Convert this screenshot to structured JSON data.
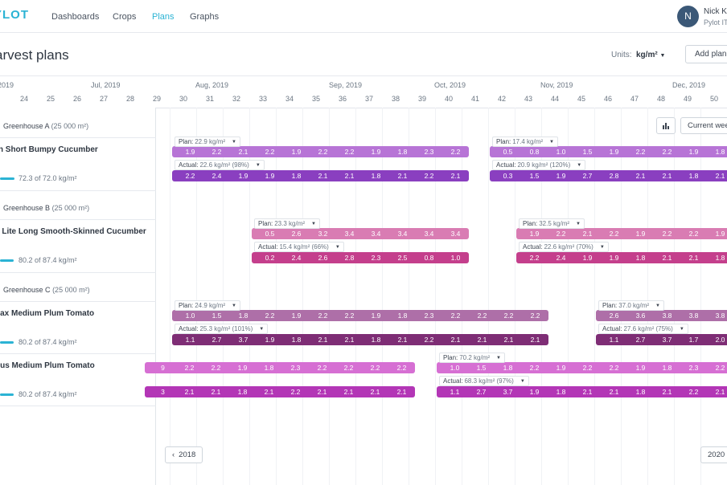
{
  "app": {
    "logo": "YLOT"
  },
  "nav": {
    "items": [
      "Dashboards",
      "Crops",
      "Plans",
      "Graphs"
    ],
    "active": "Plans"
  },
  "user": {
    "initial": "N",
    "name": "Nick K.",
    "org": "Pylot IT"
  },
  "page": {
    "title": "arvest plans",
    "units_label": "Units:",
    "units_value": "kg/m²",
    "add_button": "Add plan"
  },
  "timeline": {
    "months": [
      "2019",
      "Jul, 2019",
      "Aug, 2019",
      "Sep, 2019",
      "Oct, 2019",
      "Nov, 2019",
      "Dec, 2019"
    ],
    "weeks": [
      "3",
      "24",
      "25",
      "26",
      "27",
      "28",
      "29",
      "30",
      "31",
      "32",
      "33",
      "34",
      "35",
      "36",
      "37",
      "38",
      "39",
      "40",
      "41",
      "42",
      "43",
      "44",
      "45",
      "46",
      "47",
      "48",
      "49",
      "50"
    ]
  },
  "controls": {
    "chart_icon": "bar-chart-icon",
    "current_week": "Current wee",
    "prev_year": "2018",
    "next_year": "2020",
    "prev_icon": "chevron-left-icon"
  },
  "greenhouses": [
    {
      "name": "Greenhouse A",
      "area": "(25 000 m²)"
    },
    {
      "name": "Greenhouse B",
      "area": "(25 000 m²)"
    },
    {
      "name": "Greenhouse C",
      "area": "(25 000 m²)"
    }
  ],
  "crops": [
    {
      "name": "rn Short Bumpy Cucumber",
      "progress_text": "72.3 of 72.0 kg/m²",
      "progress": 1.0
    },
    {
      "name": "e Lite Long Smooth-Skinned Cucumber",
      "progress_text": "80.2 of 87.4 kg/m²",
      "progress": 0.92
    },
    {
      "name": "nax Medium Plum Tomato",
      "progress_text": "80.2 of 87.4 kg/m²",
      "progress": 0.92
    },
    {
      "name": "nus Medium Plum Tomato",
      "progress_text": "80.2 of 87.4 kg/m²",
      "progress": 0.92
    }
  ],
  "plans": [
    {
      "plan_key": "Plan:",
      "plan_label": "22.9 kg/m²",
      "plan_values": [
        "1.9",
        "2.2",
        "2.1",
        "2.2",
        "1.9",
        "2.2",
        "2.2",
        "1.9",
        "1.8",
        "2.3",
        "2.2"
      ],
      "actual_key": "Actual:",
      "actual_label": "22.6 kg/m² (98%)",
      "actual_values": [
        "2.2",
        "2.4",
        "1.9",
        "1.9",
        "1.8",
        "2.1",
        "2.1",
        "1.8",
        "2.1",
        "2.2",
        "2.1"
      ],
      "plan_color": "#b774d6",
      "actual_color": "#8a3fc0"
    },
    {
      "plan_key": "Plan:",
      "plan_label": "17.4 kg/m²",
      "plan_values": [
        "0.5",
        "0.8",
        "1.0",
        "1.5",
        "1.9",
        "2.2",
        "2.2",
        "1.9",
        "1.8"
      ],
      "actual_key": "Actual:",
      "actual_label": "20.9 kg/m² (120%)",
      "actual_values": [
        "0.3",
        "1.5",
        "1.9",
        "2.7",
        "2.8",
        "2.1",
        "2.1",
        "1.8",
        "2.1"
      ],
      "plan_color": "#b774d6",
      "actual_color": "#8a3fc0"
    },
    {
      "plan_key": "Plan:",
      "plan_label": "23.3 kg/m²",
      "plan_values": [
        "0.5",
        "2.6",
        "3.2",
        "3.4",
        "3.4",
        "3.4",
        "3.4",
        "3.4"
      ],
      "actual_key": "Actual:",
      "actual_label": "15.4 kg/m² (66%)",
      "actual_values": [
        "0.2",
        "2.4",
        "2.6",
        "2.8",
        "2.3",
        "2.5",
        "0.8",
        "1.0"
      ],
      "plan_color": "#d97cb3",
      "actual_color": "#c43f8c"
    },
    {
      "plan_key": "Plan:",
      "plan_label": "32.5 kg/m²",
      "plan_values": [
        "1.9",
        "2.2",
        "2.1",
        "2.2",
        "1.9",
        "2.2",
        "2.2",
        "1.9"
      ],
      "actual_key": "Actual:",
      "actual_label": "22.6 kg/m² (70%)",
      "actual_values": [
        "2.2",
        "2.4",
        "1.9",
        "1.9",
        "1.8",
        "2.1",
        "2.1",
        "1.8"
      ],
      "plan_color": "#d97cb3",
      "actual_color": "#c43f8c"
    },
    {
      "plan_key": "Plan:",
      "plan_label": "24.9 kg/m²",
      "plan_values": [
        "1.0",
        "1.5",
        "1.8",
        "2.2",
        "1.9",
        "2.2",
        "2.2",
        "1.9",
        "1.8",
        "2.3",
        "2.2",
        "2.2",
        "2.2",
        "2.2"
      ],
      "actual_key": "Actual:",
      "actual_label": "25.3 kg/m² (101%)",
      "actual_values": [
        "1.1",
        "2.7",
        "3.7",
        "1.9",
        "1.8",
        "2.1",
        "2.1",
        "1.8",
        "2.1",
        "2.2",
        "2.1",
        "2.1",
        "2.1",
        "2.1"
      ],
      "plan_color": "#ae6fa8",
      "actual_color": "#7e2d75"
    },
    {
      "plan_key": "Plan:",
      "plan_label": "37.0 kg/m²",
      "plan_values": [
        "2.6",
        "3.6",
        "3.8",
        "3.8",
        "3.8"
      ],
      "actual_key": "Actual:",
      "actual_label": "27.6 kg/m² (75%)",
      "actual_values": [
        "1.1",
        "2.7",
        "3.7",
        "1.7",
        "2.0"
      ],
      "plan_color": "#ae6fa8",
      "actual_color": "#7e2d75"
    },
    {
      "plan_values": [
        "9",
        "2.2",
        "2.2",
        "1.9",
        "1.8",
        "2.3",
        "2.2",
        "2.2",
        "2.2",
        "2.2"
      ],
      "actual_values": [
        "3",
        "2.1",
        "2.1",
        "1.8",
        "2.1",
        "2.2",
        "2.1",
        "2.1",
        "2.1",
        "2.1"
      ],
      "plan_color": "#d66fd3",
      "actual_color": "#b336b6"
    },
    {
      "plan_key": "Plan:",
      "plan_label": "70.2 kg/m²",
      "plan_values": [
        "1.0",
        "1.5",
        "1.8",
        "2.2",
        "1.9",
        "2.2",
        "2.2",
        "1.9",
        "1.8",
        "2.3",
        "2.2"
      ],
      "actual_key": "Actual:",
      "actual_label": "68.3 kg/m² (97%)",
      "actual_values": [
        "1.1",
        "2.7",
        "3.7",
        "1.9",
        "1.8",
        "2.1",
        "2.1",
        "1.8",
        "2.1",
        "2.2",
        "2.1"
      ],
      "plan_color": "#d66fd3",
      "actual_color": "#b336b6"
    }
  ]
}
